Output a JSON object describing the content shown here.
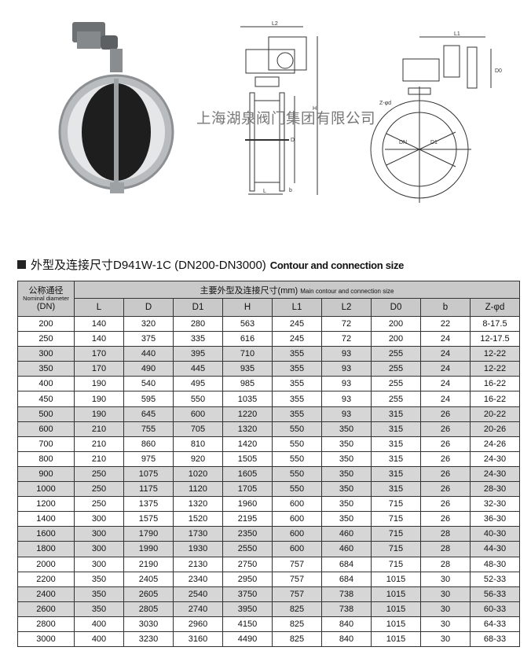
{
  "watermark": "上海湖泉阀门集团有限公司",
  "drawings": {
    "side_labels": [
      "L2",
      "H",
      "D",
      "L",
      "b"
    ],
    "front_labels": [
      "L1",
      "D0",
      "Z-φd",
      "DN",
      "D1"
    ]
  },
  "title": {
    "cn": "外型及连接尺寸D941W-1C (DN200-DN3000)",
    "en": "Contour and connection size"
  },
  "table": {
    "dn_header_cn": "公称通径",
    "dn_header_en": "Nominal diameter",
    "dn_header_unit": "(DN)",
    "main_header_cn": "主要外型及连接尺寸(mm)",
    "main_header_en": "Main contour and connection size",
    "columns": [
      "L",
      "D",
      "D1",
      "H",
      "L1",
      "L2",
      "D0",
      "b",
      "Z-φd"
    ],
    "rows": [
      [
        "200",
        "140",
        "320",
        "280",
        "563",
        "245",
        "72",
        "200",
        "22",
        "8-17.5"
      ],
      [
        "250",
        "140",
        "375",
        "335",
        "616",
        "245",
        "72",
        "200",
        "24",
        "12-17.5"
      ],
      [
        "300",
        "170",
        "440",
        "395",
        "710",
        "355",
        "93",
        "255",
        "24",
        "12-22"
      ],
      [
        "350",
        "170",
        "490",
        "445",
        "935",
        "355",
        "93",
        "255",
        "24",
        "12-22"
      ],
      [
        "400",
        "190",
        "540",
        "495",
        "985",
        "355",
        "93",
        "255",
        "24",
        "16-22"
      ],
      [
        "450",
        "190",
        "595",
        "550",
        "1035",
        "355",
        "93",
        "255",
        "24",
        "16-22"
      ],
      [
        "500",
        "190",
        "645",
        "600",
        "1220",
        "355",
        "93",
        "315",
        "26",
        "20-22"
      ],
      [
        "600",
        "210",
        "755",
        "705",
        "1320",
        "550",
        "350",
        "315",
        "26",
        "20-26"
      ],
      [
        "700",
        "210",
        "860",
        "810",
        "1420",
        "550",
        "350",
        "315",
        "26",
        "24-26"
      ],
      [
        "800",
        "210",
        "975",
        "920",
        "1505",
        "550",
        "350",
        "315",
        "26",
        "24-30"
      ],
      [
        "900",
        "250",
        "1075",
        "1020",
        "1605",
        "550",
        "350",
        "315",
        "26",
        "24-30"
      ],
      [
        "1000",
        "250",
        "1175",
        "1120",
        "1705",
        "550",
        "350",
        "315",
        "26",
        "28-30"
      ],
      [
        "1200",
        "250",
        "1375",
        "1320",
        "1960",
        "600",
        "350",
        "715",
        "26",
        "32-30"
      ],
      [
        "1400",
        "300",
        "1575",
        "1520",
        "2195",
        "600",
        "350",
        "715",
        "26",
        "36-30"
      ],
      [
        "1600",
        "300",
        "1790",
        "1730",
        "2350",
        "600",
        "460",
        "715",
        "28",
        "40-30"
      ],
      [
        "1800",
        "300",
        "1990",
        "1930",
        "2550",
        "600",
        "460",
        "715",
        "28",
        "44-30"
      ],
      [
        "2000",
        "300",
        "2190",
        "2130",
        "2750",
        "757",
        "684",
        "715",
        "28",
        "48-30"
      ],
      [
        "2200",
        "350",
        "2405",
        "2340",
        "2950",
        "757",
        "684",
        "1015",
        "30",
        "52-33"
      ],
      [
        "2400",
        "350",
        "2605",
        "2540",
        "3750",
        "757",
        "738",
        "1015",
        "30",
        "56-33"
      ],
      [
        "2600",
        "350",
        "2805",
        "2740",
        "3950",
        "825",
        "738",
        "1015",
        "30",
        "60-33"
      ],
      [
        "2800",
        "400",
        "3030",
        "2960",
        "4150",
        "825",
        "840",
        "1015",
        "30",
        "64-33"
      ],
      [
        "3000",
        "400",
        "3230",
        "3160",
        "4490",
        "825",
        "840",
        "1015",
        "30",
        "68-33"
      ]
    ]
  }
}
